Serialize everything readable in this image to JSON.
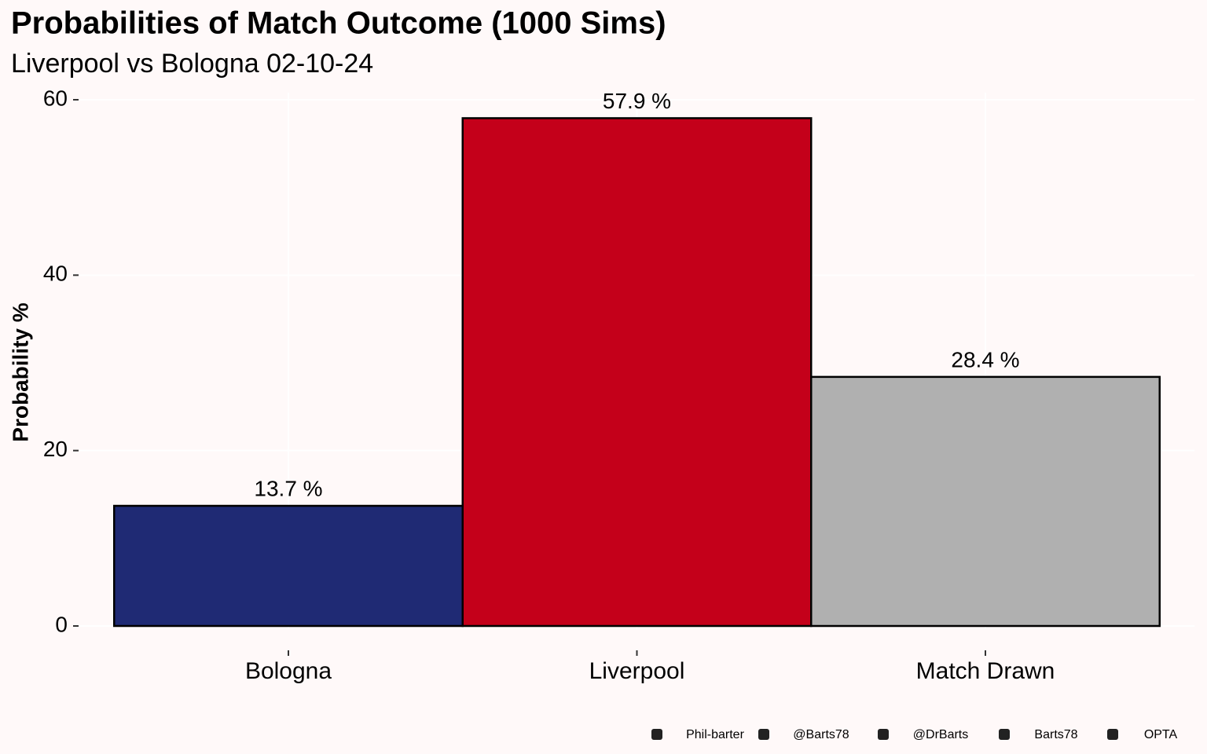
{
  "chart_data": {
    "type": "bar",
    "title": "Probabilities of Match Outcome (1000 Sims)",
    "subtitle": "Liverpool vs Bologna 02-10-24",
    "y_label": "Probability %",
    "categories": [
      "Bologna",
      "Liverpool",
      "Match Drawn"
    ],
    "values": [
      13.7,
      57.9,
      28.4
    ],
    "value_labels": [
      "13.7  %",
      "57.9  %",
      "28.4  %"
    ],
    "colors": [
      "#1f2a74",
      "#c4001a",
      "#b0b0b0"
    ],
    "ylim": [
      0,
      60
    ],
    "yticks": [
      0,
      20,
      40,
      60
    ],
    "grid": true,
    "footer": [
      "Phil-barter",
      "@Barts78",
      "@DrBarts",
      "Barts78",
      "OPTA"
    ]
  }
}
